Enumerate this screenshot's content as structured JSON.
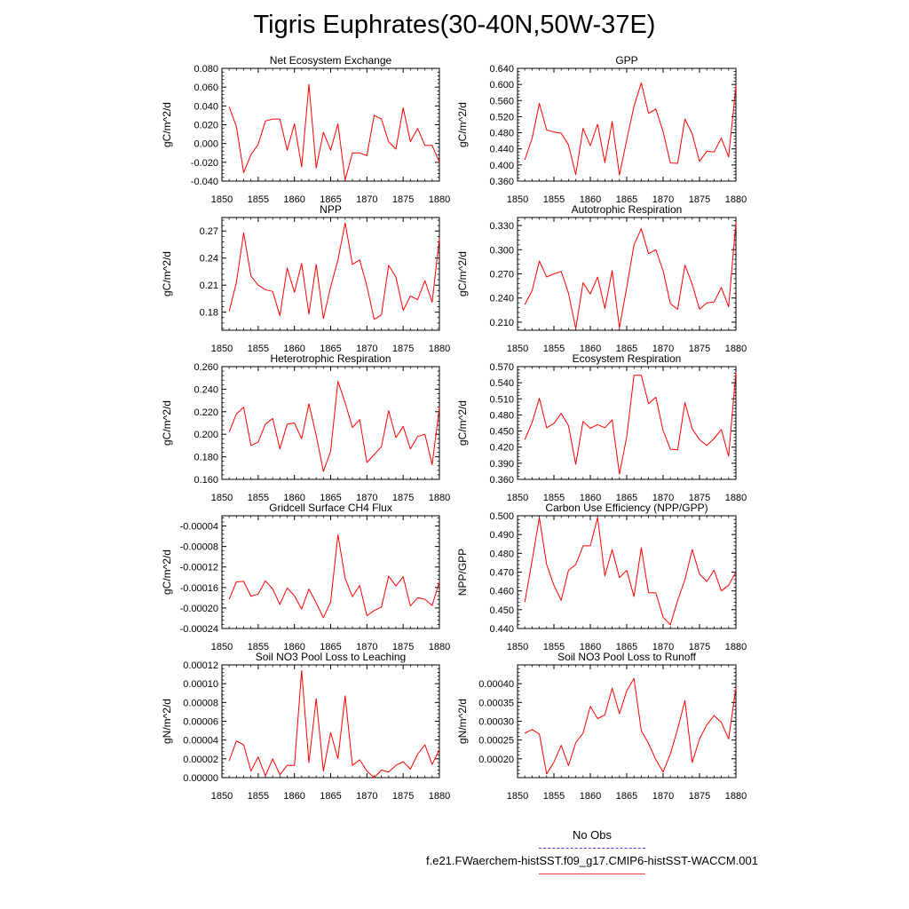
{
  "figure_title": "Tigris Euphrates(30-40N,50W-37E)",
  "legend": {
    "obs_label": "No Obs",
    "case_label": "f.e21.FWaerchem-histSST.f09_g17.CMIP6-histSST-WACCM.001",
    "obs_color": "#3c3ce6",
    "case_color": "#ff0000"
  },
  "chart_data": [
    {
      "type": "line",
      "title": "Net Ecosystem Exchange",
      "ylabel": "gC/m^2/d",
      "x": [
        1851,
        1852,
        1853,
        1854,
        1855,
        1856,
        1857,
        1858,
        1859,
        1860,
        1861,
        1862,
        1863,
        1864,
        1865,
        1866,
        1867,
        1868,
        1869,
        1870,
        1871,
        1872,
        1873,
        1874,
        1875,
        1876,
        1877,
        1878,
        1879,
        1880
      ],
      "values": [
        0.039,
        0.018,
        -0.031,
        -0.012,
        -0.001,
        0.024,
        0.026,
        0.026,
        -0.007,
        0.021,
        -0.025,
        0.063,
        -0.026,
        0.012,
        -0.007,
        0.021,
        -0.039,
        -0.01,
        -0.01,
        -0.013,
        0.03,
        0.026,
        0.002,
        -0.006,
        0.038,
        0.002,
        0.016,
        -0.002,
        -0.002,
        -0.02
      ],
      "xlim": [
        1850,
        1880
      ],
      "ylim": [
        -0.04,
        0.08
      ],
      "xticks": [
        "1850",
        "1855",
        "1860",
        "1865",
        "1870",
        "1875",
        "1880"
      ],
      "yticks": [
        "-0.040",
        "-0.020",
        "0.000",
        "0.020",
        "0.040",
        "0.060",
        "0.080"
      ]
    },
    {
      "type": "line",
      "title": "GPP",
      "ylabel": "gC/m^2/d",
      "x": [
        1851,
        1852,
        1853,
        1854,
        1855,
        1856,
        1857,
        1858,
        1859,
        1860,
        1861,
        1862,
        1863,
        1864,
        1865,
        1866,
        1867,
        1868,
        1869,
        1870,
        1871,
        1872,
        1873,
        1874,
        1875,
        1876,
        1877,
        1878,
        1879,
        1880
      ],
      "values": [
        0.413,
        0.466,
        0.553,
        0.487,
        0.482,
        0.479,
        0.45,
        0.376,
        0.491,
        0.448,
        0.501,
        0.406,
        0.508,
        0.375,
        0.462,
        0.546,
        0.604,
        0.528,
        0.539,
        0.483,
        0.405,
        0.404,
        0.514,
        0.477,
        0.409,
        0.434,
        0.432,
        0.467,
        0.42,
        0.596
      ],
      "xlim": [
        1850,
        1880
      ],
      "ylim": [
        0.36,
        0.64
      ],
      "xticks": [
        "1850",
        "1855",
        "1860",
        "1865",
        "1870",
        "1875",
        "1880"
      ],
      "yticks": [
        "0.360",
        "0.400",
        "0.440",
        "0.480",
        "0.520",
        "0.560",
        "0.600",
        "0.640"
      ]
    },
    {
      "type": "line",
      "title": "NPP",
      "ylabel": "gC/m^2/d",
      "x": [
        1851,
        1852,
        1853,
        1854,
        1855,
        1856,
        1857,
        1858,
        1859,
        1860,
        1861,
        1862,
        1863,
        1864,
        1865,
        1866,
        1867,
        1868,
        1869,
        1870,
        1871,
        1872,
        1873,
        1874,
        1875,
        1876,
        1877,
        1878,
        1879,
        1880
      ],
      "values": [
        0.181,
        0.213,
        0.268,
        0.22,
        0.21,
        0.205,
        0.203,
        0.176,
        0.229,
        0.202,
        0.234,
        0.178,
        0.233,
        0.173,
        0.208,
        0.238,
        0.279,
        0.233,
        0.238,
        0.209,
        0.172,
        0.177,
        0.232,
        0.219,
        0.182,
        0.198,
        0.194,
        0.215,
        0.191,
        0.262
      ],
      "xlim": [
        1850,
        1880
      ],
      "ylim": [
        0.16,
        0.285
      ],
      "xticks": [
        "1850",
        "1855",
        "1860",
        "1865",
        "1870",
        "1875",
        "1880"
      ],
      "yticks": [
        "0.18",
        "0.21",
        "0.24",
        "0.27"
      ]
    },
    {
      "type": "line",
      "title": "Autotrophic Respiration",
      "ylabel": "gC/m^2/d",
      "x": [
        1851,
        1852,
        1853,
        1854,
        1855,
        1856,
        1857,
        1858,
        1859,
        1860,
        1861,
        1862,
        1863,
        1864,
        1865,
        1866,
        1867,
        1868,
        1869,
        1870,
        1871,
        1872,
        1873,
        1874,
        1875,
        1876,
        1877,
        1878,
        1879,
        1880
      ],
      "values": [
        0.232,
        0.249,
        0.286,
        0.266,
        0.27,
        0.273,
        0.246,
        0.202,
        0.259,
        0.245,
        0.266,
        0.227,
        0.274,
        0.203,
        0.253,
        0.306,
        0.326,
        0.295,
        0.3,
        0.274,
        0.233,
        0.226,
        0.281,
        0.257,
        0.226,
        0.234,
        0.235,
        0.253,
        0.229,
        0.334
      ],
      "xlim": [
        1850,
        1880
      ],
      "ylim": [
        0.2,
        0.34
      ],
      "xticks": [
        "1850",
        "1855",
        "1860",
        "1865",
        "1870",
        "1875",
        "1880"
      ],
      "yticks": [
        "0.210",
        "0.240",
        "0.270",
        "0.300",
        "0.330"
      ]
    },
    {
      "type": "line",
      "title": "Heterotrophic Respiration",
      "ylabel": "gC/m^2/d",
      "x": [
        1851,
        1852,
        1853,
        1854,
        1855,
        1856,
        1857,
        1858,
        1859,
        1860,
        1861,
        1862,
        1863,
        1864,
        1865,
        1866,
        1867,
        1868,
        1869,
        1870,
        1871,
        1872,
        1873,
        1874,
        1875,
        1876,
        1877,
        1878,
        1879,
        1880
      ],
      "values": [
        0.202,
        0.218,
        0.224,
        0.19,
        0.193,
        0.209,
        0.214,
        0.187,
        0.209,
        0.21,
        0.196,
        0.227,
        0.199,
        0.167,
        0.185,
        0.247,
        0.228,
        0.206,
        0.213,
        0.175,
        0.182,
        0.189,
        0.221,
        0.197,
        0.207,
        0.187,
        0.198,
        0.2,
        0.173,
        0.224
      ],
      "xlim": [
        1850,
        1880
      ],
      "ylim": [
        0.16,
        0.26
      ],
      "xticks": [
        "1850",
        "1855",
        "1860",
        "1865",
        "1870",
        "1875",
        "1880"
      ],
      "yticks": [
        "0.160",
        "0.180",
        "0.200",
        "0.220",
        "0.240",
        "0.260"
      ]
    },
    {
      "type": "line",
      "title": "Ecosystem Respiration",
      "ylabel": "gC/m^2/d",
      "x": [
        1851,
        1852,
        1853,
        1854,
        1855,
        1856,
        1857,
        1858,
        1859,
        1860,
        1861,
        1862,
        1863,
        1864,
        1865,
        1866,
        1867,
        1868,
        1869,
        1870,
        1871,
        1872,
        1873,
        1874,
        1875,
        1876,
        1877,
        1878,
        1879,
        1880
      ],
      "values": [
        0.434,
        0.466,
        0.511,
        0.456,
        0.464,
        0.483,
        0.46,
        0.388,
        0.468,
        0.455,
        0.462,
        0.456,
        0.471,
        0.37,
        0.439,
        0.554,
        0.554,
        0.501,
        0.513,
        0.451,
        0.416,
        0.415,
        0.503,
        0.454,
        0.434,
        0.423,
        0.436,
        0.453,
        0.403,
        0.56
      ],
      "xlim": [
        1850,
        1880
      ],
      "ylim": [
        0.36,
        0.57
      ],
      "xticks": [
        "1850",
        "1855",
        "1860",
        "1865",
        "1870",
        "1875",
        "1880"
      ],
      "yticks": [
        "0.360",
        "0.390",
        "0.420",
        "0.450",
        "0.480",
        "0.510",
        "0.540",
        "0.570"
      ]
    },
    {
      "type": "line",
      "title": "Gridcell Surface CH4 Flux",
      "ylabel": "gC/m^2/d",
      "x": [
        1851,
        1852,
        1853,
        1854,
        1855,
        1856,
        1857,
        1858,
        1859,
        1860,
        1861,
        1862,
        1863,
        1864,
        1865,
        1866,
        1867,
        1868,
        1869,
        1870,
        1871,
        1872,
        1873,
        1874,
        1875,
        1876,
        1877,
        1878,
        1879,
        1880
      ],
      "values": [
        -0.000183,
        -0.000149,
        -0.000148,
        -0.000177,
        -0.000173,
        -0.000147,
        -0.000163,
        -0.000193,
        -0.000161,
        -0.000176,
        -0.000202,
        -0.000163,
        -0.00019,
        -0.000219,
        -0.000188,
        -5.7e-05,
        -0.000142,
        -0.000178,
        -0.000156,
        -0.000215,
        -0.000205,
        -0.000198,
        -0.000138,
        -0.000157,
        -0.000139,
        -0.000196,
        -0.00018,
        -0.000183,
        -0.000195,
        -0.000149
      ],
      "xlim": [
        1850,
        1880
      ],
      "ylim": [
        -0.00024,
        -2e-05
      ],
      "xticks": [
        "1850",
        "1855",
        "1860",
        "1865",
        "1870",
        "1875",
        "1880"
      ],
      "yticks": [
        "-0.00024",
        "-0.00020",
        "-0.00016",
        "-0.00012",
        "-0.00008",
        "-0.00004"
      ]
    },
    {
      "type": "line",
      "title": "Carbon Use Efficiency (NPP/GPP)",
      "ylabel": "NPP/GPP",
      "x": [
        1851,
        1852,
        1853,
        1854,
        1855,
        1856,
        1857,
        1858,
        1859,
        1860,
        1861,
        1862,
        1863,
        1864,
        1865,
        1866,
        1867,
        1868,
        1869,
        1870,
        1871,
        1872,
        1873,
        1874,
        1875,
        1876,
        1877,
        1878,
        1879,
        1880
      ],
      "values": [
        0.454,
        0.476,
        0.499,
        0.474,
        0.463,
        0.455,
        0.471,
        0.474,
        0.484,
        0.484,
        0.499,
        0.468,
        0.482,
        0.467,
        0.471,
        0.457,
        0.483,
        0.459,
        0.459,
        0.446,
        0.442,
        0.455,
        0.466,
        0.482,
        0.469,
        0.465,
        0.471,
        0.46,
        0.463,
        0.47
      ],
      "xlim": [
        1850,
        1880
      ],
      "ylim": [
        0.44,
        0.5
      ],
      "xticks": [
        "1850",
        "1855",
        "1860",
        "1865",
        "1870",
        "1875",
        "1880"
      ],
      "yticks": [
        "0.440",
        "0.450",
        "0.460",
        "0.470",
        "0.480",
        "0.490",
        "0.500"
      ]
    },
    {
      "type": "line",
      "title": "Soil NO3 Pool Loss to Leaching",
      "ylabel": "gN/m^2/d",
      "x": [
        1851,
        1852,
        1853,
        1854,
        1855,
        1856,
        1857,
        1858,
        1859,
        1860,
        1861,
        1862,
        1863,
        1864,
        1865,
        1866,
        1867,
        1868,
        1869,
        1870,
        1871,
        1872,
        1873,
        1874,
        1875,
        1876,
        1877,
        1878,
        1879,
        1880
      ],
      "values": [
        1.8e-05,
        3.9e-05,
        3.5e-05,
        7e-06,
        2.2e-05,
        2e-06,
        2e-05,
        3e-06,
        1.3e-05,
        1.3e-05,
        0.000114,
        1.6e-05,
        8.4e-05,
        7e-06,
        4.8e-05,
        2e-05,
        8.7e-05,
        1.3e-05,
        1.9e-05,
        7e-06,
        0.0,
        8e-06,
        6e-06,
        1.3e-05,
        1.7e-05,
        9e-06,
        2.5e-05,
        3.5e-05,
        1.4e-05,
        3e-05
      ],
      "xlim": [
        1850,
        1880
      ],
      "ylim": [
        0.0,
        0.00012
      ],
      "xticks": [
        "1850",
        "1855",
        "1860",
        "1865",
        "1870",
        "1875",
        "1880"
      ],
      "yticks": [
        "0.00000",
        "0.00002",
        "0.00004",
        "0.00006",
        "0.00008",
        "0.00010",
        "0.00012"
      ]
    },
    {
      "type": "line",
      "title": "Soil NO3 Pool Loss to Runoff",
      "ylabel": "gN/m^2/d",
      "x": [
        1851,
        1852,
        1853,
        1854,
        1855,
        1856,
        1857,
        1858,
        1859,
        1860,
        1861,
        1862,
        1863,
        1864,
        1865,
        1866,
        1867,
        1868,
        1869,
        1870,
        1871,
        1872,
        1873,
        1874,
        1875,
        1876,
        1877,
        1878,
        1879,
        1880
      ],
      "values": [
        0.000268,
        0.000278,
        0.000266,
        0.00016,
        0.000191,
        0.000236,
        0.000182,
        0.000243,
        0.000268,
        0.00034,
        0.000307,
        0.000317,
        0.000388,
        0.00032,
        0.000381,
        0.000414,
        0.000275,
        0.000241,
        0.000198,
        0.000165,
        0.000213,
        0.00028,
        0.000355,
        0.00019,
        0.000253,
        0.00029,
        0.000315,
        0.000297,
        0.000253,
        0.00039
      ],
      "xlim": [
        1850,
        1880
      ],
      "ylim": [
        0.00015,
        0.00045
      ],
      "xticks": [
        "1850",
        "1855",
        "1860",
        "1865",
        "1870",
        "1875",
        "1880"
      ],
      "yticks": [
        "0.00020",
        "0.00025",
        "0.00030",
        "0.00035",
        "0.00040"
      ]
    }
  ]
}
